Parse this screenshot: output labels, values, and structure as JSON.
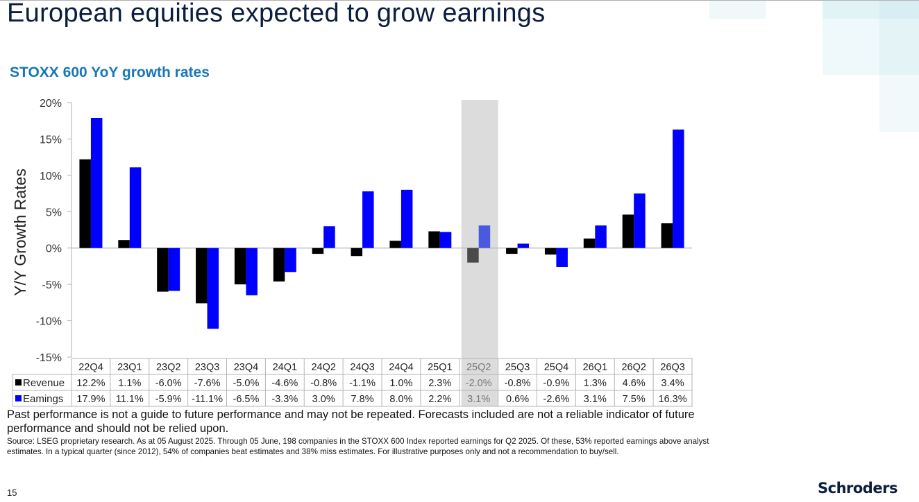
{
  "page": {
    "title": "European equities expected to grow earnings",
    "subtitle": "STOXX 600 YoY growth rates",
    "disclaimer": "Past performance is not a guide to future performance and may not be repeated. Forecasts included are not a reliable indicator of future performance and should not be relied upon.",
    "source": "Source: LSEG proprietary research. As at 05 August 2025. Through 05 June, 198 companies in the STOXX 600 Index reported earnings for Q2 2025. Of these, 53% reported earnings above analyst estimates. In a typical quarter (since 2012), 54% of companies beat estimates and 38% miss estimates. For illustrative purposes only and not a recommendation to buy/sell.",
    "page_number": "15",
    "brand": "Schroders"
  },
  "colors": {
    "revenue": "#000000",
    "earnings": "#0000ff",
    "revenue_highlight": "#4a4a4a",
    "earnings_highlight": "#4a5ae0",
    "highlight_band": "#dcdcdc",
    "title": "#0b1e3f",
    "subtitle": "#1877b6"
  },
  "chart_data": {
    "type": "bar",
    "title": "STOXX 600 YoY growth rates",
    "xlabel": "",
    "ylabel": "Y/Y Growth Rates",
    "ylim": [
      -15,
      20
    ],
    "yticks": [
      20,
      15,
      10,
      5,
      0,
      -5,
      -10,
      -15
    ],
    "ytick_labels": [
      "20%",
      "15%",
      "10%",
      "5%",
      "0%",
      "-5%",
      "-10%",
      "-15%"
    ],
    "grid": false,
    "legend_placement": "data-table-below",
    "highlighted_category": "25Q2",
    "categories": [
      "22Q4",
      "23Q1",
      "23Q2",
      "23Q3",
      "23Q4",
      "24Q1",
      "24Q2",
      "24Q3",
      "24Q4",
      "25Q1",
      "25Q2",
      "25Q3",
      "25Q4",
      "26Q1",
      "26Q2",
      "26Q3"
    ],
    "series": [
      {
        "name": "Revenue",
        "values": [
          12.2,
          1.1,
          -6.0,
          -7.6,
          -5.0,
          -4.6,
          -0.8,
          -1.1,
          1.0,
          2.3,
          -2.0,
          -0.8,
          -0.9,
          1.3,
          4.6,
          3.4
        ],
        "labels": [
          "12.2%",
          "1.1%",
          "-6.0%",
          "-7.6%",
          "-5.0%",
          "-4.6%",
          "-0.8%",
          "-1.1%",
          "1.0%",
          "2.3%",
          "-2.0%",
          "-0.8%",
          "-0.9%",
          "1.3%",
          "4.6%",
          "3.4%"
        ]
      },
      {
        "name": "Eamings",
        "values": [
          17.9,
          11.1,
          -5.9,
          -11.1,
          -6.5,
          -3.3,
          3.0,
          7.8,
          8.0,
          2.2,
          3.1,
          0.6,
          -2.6,
          3.1,
          7.5,
          16.3
        ],
        "labels": [
          "17.9%",
          "11.1%",
          "-5.9%",
          "-11.1%",
          "-6.5%",
          "-3.3%",
          "3.0%",
          "7.8%",
          "8.0%",
          "2.2%",
          "3.1%",
          "0.6%",
          "-2.6%",
          "3.1%",
          "7.5%",
          "16.3%"
        ]
      }
    ]
  }
}
